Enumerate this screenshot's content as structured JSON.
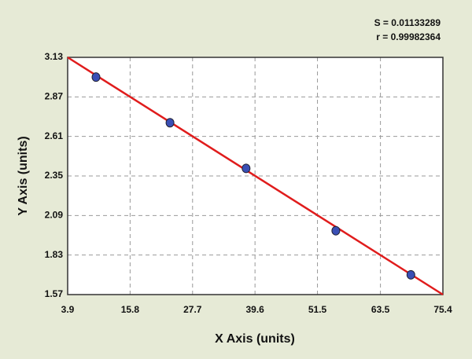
{
  "chart_data": {
    "type": "scatter",
    "x_label": "X Axis (units)",
    "y_label": "Y Axis (units)",
    "annotations": [
      "S = 0.01133289",
      "r = 0.99982364"
    ],
    "xlim": [
      3.9,
      75.4
    ],
    "xticks": [
      3.9,
      15.8,
      27.7,
      39.6,
      51.5,
      63.5,
      75.4
    ],
    "ylim": [
      1.57,
      3.13
    ],
    "yticks": [
      1.57,
      1.83,
      2.09,
      2.35,
      2.61,
      2.87,
      3.13
    ],
    "grid": true,
    "series": [
      {
        "color": "#3a4fb5",
        "x": [
          9.3,
          23.4,
          37.9,
          55.0,
          69.3
        ],
        "values": [
          3.0,
          2.7,
          2.4,
          1.99,
          1.7
        ]
      }
    ],
    "fit": {
      "color": "#e01c1c",
      "x": [
        3.9,
        75.4
      ],
      "values": [
        3.13,
        1.57
      ]
    }
  }
}
